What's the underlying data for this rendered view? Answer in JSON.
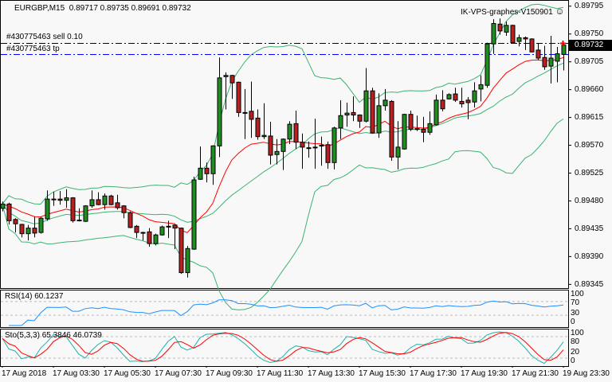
{
  "header": {
    "symbol_timeframe": "EURGBP,M15",
    "ohlc_text": "0.89717 0.89735 0.89691 0.89732",
    "ea_name": "IK-VPS-graphes-V150901",
    "ea_icon": "smiley-face-icon"
  },
  "trade_lines": {
    "sell_label": "#430775463 sell 0.10",
    "sell_price": 0.89736,
    "tp_label": "#430775463 tp",
    "tp_price": 0.89717
  },
  "bid_label": "0.89732",
  "colors": {
    "background": "#f8f8f8",
    "bull": "#228b22",
    "bear": "#b22222",
    "bollinger": "#3cb371",
    "ma": "#ff0000",
    "rsi": "#1e90ff",
    "sto_main": "#20b2aa",
    "sto_signal": "#ff0000",
    "tp_line": "#0000ff"
  },
  "chart_data": {
    "type": "candlestick",
    "symbol": "EURGBP",
    "timeframe": "M15",
    "ylim": [
      0.89339,
      0.89805
    ],
    "y_ticks": [
      "0.89795",
      "0.89750",
      "0.89705",
      "0.89660",
      "0.89615",
      "0.89570",
      "0.89525",
      "0.89480",
      "0.89435",
      "0.89390",
      "0.89345"
    ],
    "x_tick_labels": [
      "17 Aug 2018",
      "17 Aug 03:30",
      "17 Aug 05:30",
      "17 Aug 07:30",
      "17 Aug 09:30",
      "17 Aug 11:30",
      "17 Aug 13:30",
      "17 Aug 15:30",
      "17 Aug 17:30",
      "17 Aug 19:30",
      "17 Aug 21:30",
      "19 Aug 23:30"
    ],
    "fields": [
      "open",
      "high",
      "low",
      "close"
    ],
    "ohlc": [
      [
        0.89468,
        0.89479,
        0.89463,
        0.89475
      ],
      [
        0.89475,
        0.89477,
        0.89442,
        0.89448
      ],
      [
        0.8945,
        0.89452,
        0.89429,
        0.89443
      ],
      [
        0.89442,
        0.89443,
        0.89421,
        0.89427
      ],
      [
        0.89427,
        0.89441,
        0.89416,
        0.89436
      ],
      [
        0.89436,
        0.89455,
        0.89421,
        0.89428
      ],
      [
        0.89429,
        0.89454,
        0.89427,
        0.89452
      ],
      [
        0.89451,
        0.89497,
        0.89448,
        0.89483
      ],
      [
        0.89483,
        0.89495,
        0.89472,
        0.89482
      ],
      [
        0.89483,
        0.89496,
        0.89474,
        0.89481
      ],
      [
        0.89481,
        0.89499,
        0.89469,
        0.89485
      ],
      [
        0.89485,
        0.89486,
        0.89445,
        0.89448
      ],
      [
        0.89449,
        0.89468,
        0.89447,
        0.89448
      ],
      [
        0.89447,
        0.89473,
        0.89446,
        0.89472
      ],
      [
        0.89472,
        0.89497,
        0.89469,
        0.89482
      ],
      [
        0.89482,
        0.89494,
        0.89473,
        0.89474
      ],
      [
        0.89474,
        0.89492,
        0.89466,
        0.89488
      ],
      [
        0.89488,
        0.8949,
        0.89473,
        0.89474
      ],
      [
        0.89477,
        0.8949,
        0.89466,
        0.89469
      ],
      [
        0.89472,
        0.89473,
        0.89452,
        0.89461
      ],
      [
        0.89461,
        0.89463,
        0.89436,
        0.89437
      ],
      [
        0.89439,
        0.89441,
        0.8942,
        0.89429
      ],
      [
        0.89429,
        0.8943,
        0.89416,
        0.89428
      ],
      [
        0.8943,
        0.89436,
        0.89406,
        0.89411
      ],
      [
        0.89411,
        0.89427,
        0.89408,
        0.89425
      ],
      [
        0.89425,
        0.8944,
        0.89424,
        0.89438
      ],
      [
        0.89439,
        0.89448,
        0.8942,
        0.89438
      ],
      [
        0.89441,
        0.89442,
        0.89402,
        0.89436
      ],
      [
        0.89436,
        0.89437,
        0.89362,
        0.89364
      ],
      [
        0.89364,
        0.89407,
        0.89356,
        0.89403
      ],
      [
        0.89402,
        0.89519,
        0.89401,
        0.89514
      ],
      [
        0.89515,
        0.89568,
        0.89514,
        0.89533
      ],
      [
        0.89533,
        0.89542,
        0.8951,
        0.89524
      ],
      [
        0.89524,
        0.8957,
        0.89506,
        0.89569
      ],
      [
        0.89569,
        0.89712,
        0.89551,
        0.89679
      ],
      [
        0.89681,
        0.89688,
        0.89628,
        0.89683
      ],
      [
        0.89683,
        0.89684,
        0.89645,
        0.89671
      ],
      [
        0.89672,
        0.89673,
        0.89616,
        0.89623
      ],
      [
        0.89623,
        0.89661,
        0.8958,
        0.89623
      ],
      [
        0.89625,
        0.89673,
        0.89582,
        0.89612
      ],
      [
        0.89614,
        0.89628,
        0.89579,
        0.89584
      ],
      [
        0.89584,
        0.89638,
        0.8958,
        0.89586
      ],
      [
        0.89585,
        0.89608,
        0.89539,
        0.89554
      ],
      [
        0.89555,
        0.8958,
        0.89539,
        0.8956
      ],
      [
        0.8956,
        0.89581,
        0.8953,
        0.8958
      ],
      [
        0.8958,
        0.89609,
        0.89572,
        0.89604
      ],
      [
        0.89605,
        0.89626,
        0.89564,
        0.89575
      ],
      [
        0.89575,
        0.89589,
        0.89532,
        0.89567
      ],
      [
        0.89566,
        0.89576,
        0.8955,
        0.89566
      ],
      [
        0.89567,
        0.89613,
        0.89532,
        0.89566
      ],
      [
        0.89569,
        0.89584,
        0.89537,
        0.8957
      ],
      [
        0.89571,
        0.89576,
        0.89532,
        0.89542
      ],
      [
        0.89542,
        0.896,
        0.89531,
        0.89598
      ],
      [
        0.89598,
        0.89643,
        0.8958,
        0.89618
      ],
      [
        0.89619,
        0.89639,
        0.896,
        0.89622
      ],
      [
        0.89623,
        0.89649,
        0.89609,
        0.89619
      ],
      [
        0.89619,
        0.8962,
        0.89598,
        0.89609
      ],
      [
        0.89609,
        0.89695,
        0.89607,
        0.89658
      ],
      [
        0.89658,
        0.89663,
        0.89589,
        0.8959
      ],
      [
        0.8959,
        0.89654,
        0.89582,
        0.89634
      ],
      [
        0.89634,
        0.89661,
        0.89626,
        0.89643
      ],
      [
        0.89641,
        0.89643,
        0.89545,
        0.89551
      ],
      [
        0.89551,
        0.89609,
        0.89531,
        0.89567
      ],
      [
        0.89564,
        0.89621,
        0.89563,
        0.8962
      ],
      [
        0.8962,
        0.89626,
        0.89593,
        0.89596
      ],
      [
        0.89597,
        0.89618,
        0.89593,
        0.89596
      ],
      [
        0.89596,
        0.89616,
        0.89575,
        0.89591
      ],
      [
        0.89591,
        0.89625,
        0.89587,
        0.89605
      ],
      [
        0.89603,
        0.89652,
        0.89602,
        0.89643
      ],
      [
        0.89643,
        0.89659,
        0.89625,
        0.89629
      ],
      [
        0.89645,
        0.89654,
        0.89644,
        0.89652
      ],
      [
        0.89653,
        0.89663,
        0.8964,
        0.89643
      ],
      [
        0.89641,
        0.89663,
        0.89631,
        0.89637
      ],
      [
        0.89643,
        0.89648,
        0.89612,
        0.89639
      ],
      [
        0.8964,
        0.89672,
        0.89631,
        0.89658
      ],
      [
        0.89661,
        0.89683,
        0.89641,
        0.89668
      ],
      [
        0.89667,
        0.89736,
        0.89663,
        0.89734
      ],
      [
        0.89734,
        0.89774,
        0.89718,
        0.89767
      ],
      [
        0.89766,
        0.89775,
        0.89749,
        0.89755
      ],
      [
        0.89753,
        0.8977,
        0.89747,
        0.89764
      ],
      [
        0.89764,
        0.89765,
        0.89735,
        0.89736
      ],
      [
        0.89738,
        0.89749,
        0.8973,
        0.89744
      ],
      [
        0.89744,
        0.89746,
        0.89724,
        0.89742
      ],
      [
        0.89742,
        0.89743,
        0.8972,
        0.89721
      ],
      [
        0.89724,
        0.89735,
        0.89708,
        0.89711
      ],
      [
        0.89712,
        0.89731,
        0.89692,
        0.89697
      ],
      [
        0.89698,
        0.89747,
        0.8967,
        0.89711
      ],
      [
        0.89706,
        0.89729,
        0.89672,
        0.89718
      ],
      [
        0.89717,
        0.89735,
        0.89691,
        0.89732
      ]
    ],
    "indicators": {
      "bollinger": "Bollinger Bands",
      "rsi": {
        "label": "RSI(14) 60.1237",
        "levels": [
          70,
          30
        ],
        "scale_labels": [
          "100",
          "70",
          "30",
          "0"
        ],
        "ylim": [
          0,
          100
        ]
      },
      "stochastic": {
        "label": "Sto(5,3,3) 65.3846 46.0739",
        "levels": [
          80,
          20
        ],
        "scale_labels": [
          "100",
          "80",
          "20",
          "0"
        ],
        "ylim": [
          0,
          100
        ]
      }
    }
  }
}
